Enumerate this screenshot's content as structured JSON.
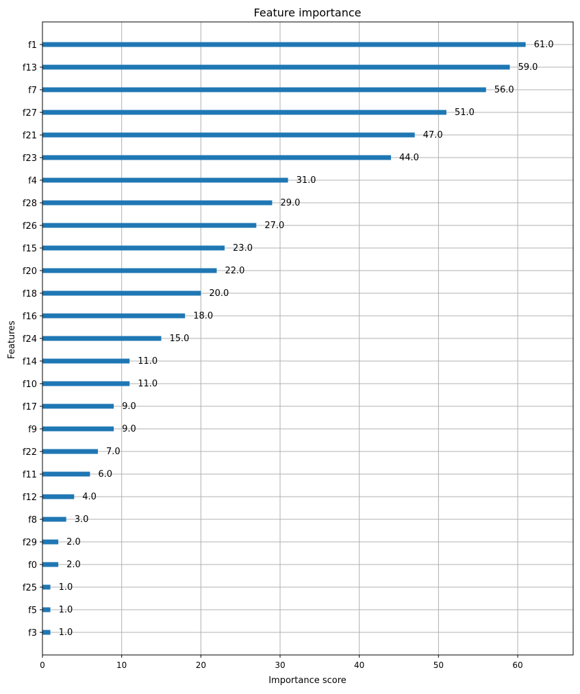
{
  "chart_data": {
    "type": "bar",
    "orientation": "horizontal",
    "title": "Feature importance",
    "xlabel": "Importance score",
    "ylabel": "Features",
    "xlim": [
      0,
      67
    ],
    "xticks": [
      0,
      10,
      20,
      30,
      40,
      50,
      60
    ],
    "grid": true,
    "bar_color": "#1f77b4",
    "categories": [
      "f1",
      "f13",
      "f7",
      "f27",
      "f21",
      "f23",
      "f4",
      "f28",
      "f26",
      "f15",
      "f20",
      "f18",
      "f16",
      "f24",
      "f14",
      "f10",
      "f17",
      "f9",
      "f22",
      "f11",
      "f12",
      "f8",
      "f29",
      "f0",
      "f25",
      "f5",
      "f3"
    ],
    "values": [
      61.0,
      59.0,
      56.0,
      51.0,
      47.0,
      44.0,
      31.0,
      29.0,
      27.0,
      23.0,
      22.0,
      20.0,
      18.0,
      15.0,
      11.0,
      11.0,
      9.0,
      9.0,
      7.0,
      6.0,
      4.0,
      3.0,
      2.0,
      2.0,
      1.0,
      1.0,
      1.0
    ],
    "value_labels": [
      "61.0",
      "59.0",
      "56.0",
      "51.0",
      "47.0",
      "44.0",
      "31.0",
      "29.0",
      "27.0",
      "23.0",
      "22.0",
      "20.0",
      "18.0",
      "15.0",
      "11.0",
      "11.0",
      "9.0",
      "9.0",
      "7.0",
      "6.0",
      "4.0",
      "3.0",
      "2.0",
      "2.0",
      "1.0",
      "1.0",
      "1.0"
    ]
  }
}
